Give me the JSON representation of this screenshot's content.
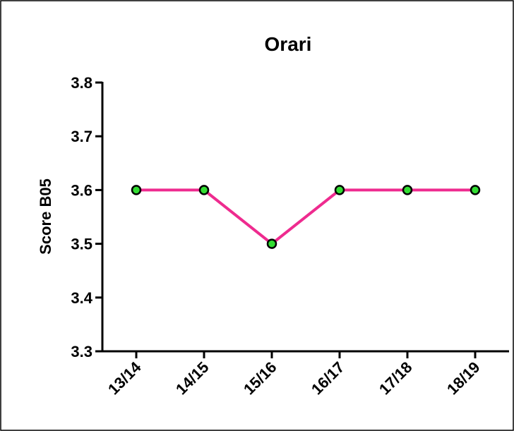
{
  "chart_data": {
    "type": "line",
    "title": "Orari",
    "y_label": "Score B05",
    "categories": [
      "13/14",
      "14/15",
      "15/16",
      "16/17",
      "17/18",
      "18/19"
    ],
    "series": [
      {
        "name": "Score B05",
        "color": "#ee2b8f",
        "marker_color": "#33dd33",
        "values": [
          3.6,
          3.6,
          3.5,
          3.6,
          3.6,
          3.6
        ]
      }
    ],
    "ylim": [
      3.3,
      3.8
    ],
    "yticks": [
      3.3,
      3.4,
      3.5,
      3.6,
      3.7,
      3.8
    ],
    "grid": false
  }
}
